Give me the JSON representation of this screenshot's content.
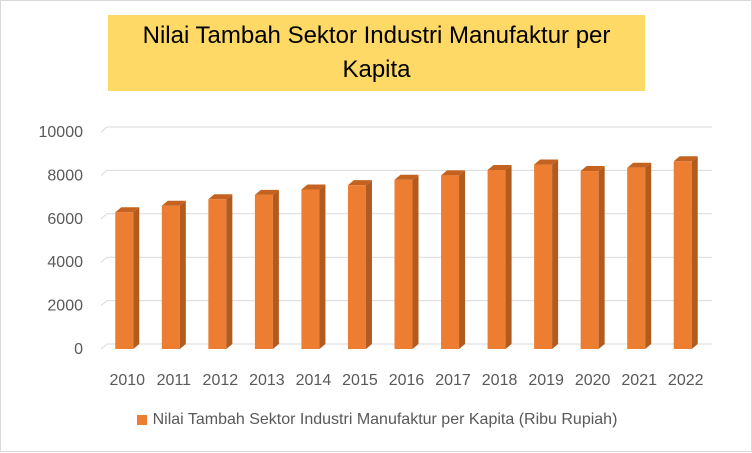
{
  "chart_data": {
    "type": "bar",
    "title": "Nilai Tambah Sektor Industri Manufaktur per Kapita",
    "xlabel": "",
    "ylabel": "",
    "categories": [
      "2010",
      "2011",
      "2012",
      "2013",
      "2014",
      "2015",
      "2016",
      "2017",
      "2018",
      "2019",
      "2020",
      "2021",
      "2022"
    ],
    "series": [
      {
        "name": "Nilai Tambah Sektor Industri Manufaktur per Kapita (Ribu Rupiah)",
        "values": [
          6300,
          6600,
          6900,
          7100,
          7350,
          7550,
          7800,
          8000,
          8250,
          8500,
          8200,
          8350,
          8650
        ],
        "color": "#ed7d31"
      }
    ],
    "ylim": [
      0,
      10000
    ],
    "yticks": [
      "0",
      "2000",
      "4000",
      "6000",
      "8000",
      "10000"
    ],
    "grid": true,
    "legend_position": "bottom",
    "style": "3d-column"
  }
}
